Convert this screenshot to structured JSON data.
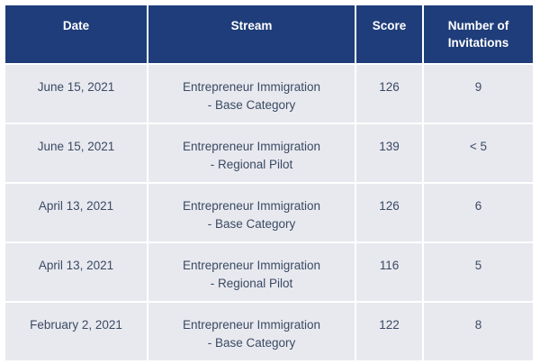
{
  "table": {
    "headers": {
      "date": "Date",
      "stream": "Stream",
      "score": "Score",
      "invitations_line1": "Number of",
      "invitations_line2": "Invitations"
    },
    "rows": [
      {
        "date": "June 15, 2021",
        "stream_line1": "Entrepreneur Immigration",
        "stream_line2": "- Base Category",
        "score": "126",
        "invitations": "9"
      },
      {
        "date": "June 15, 2021",
        "stream_line1": "Entrepreneur Immigration",
        "stream_line2": "- Regional Pilot",
        "score": "139",
        "invitations": "< 5"
      },
      {
        "date": "April 13, 2021",
        "stream_line1": "Entrepreneur Immigration",
        "stream_line2": "- Base Category",
        "score": "126",
        "invitations": "6"
      },
      {
        "date": "April 13, 2021",
        "stream_line1": "Entrepreneur Immigration",
        "stream_line2": "- Regional Pilot",
        "score": "116",
        "invitations": "5"
      },
      {
        "date": "February 2, 2021",
        "stream_line1": "Entrepreneur Immigration",
        "stream_line2": "- Base Category",
        "score": "122",
        "invitations": "8"
      }
    ]
  }
}
